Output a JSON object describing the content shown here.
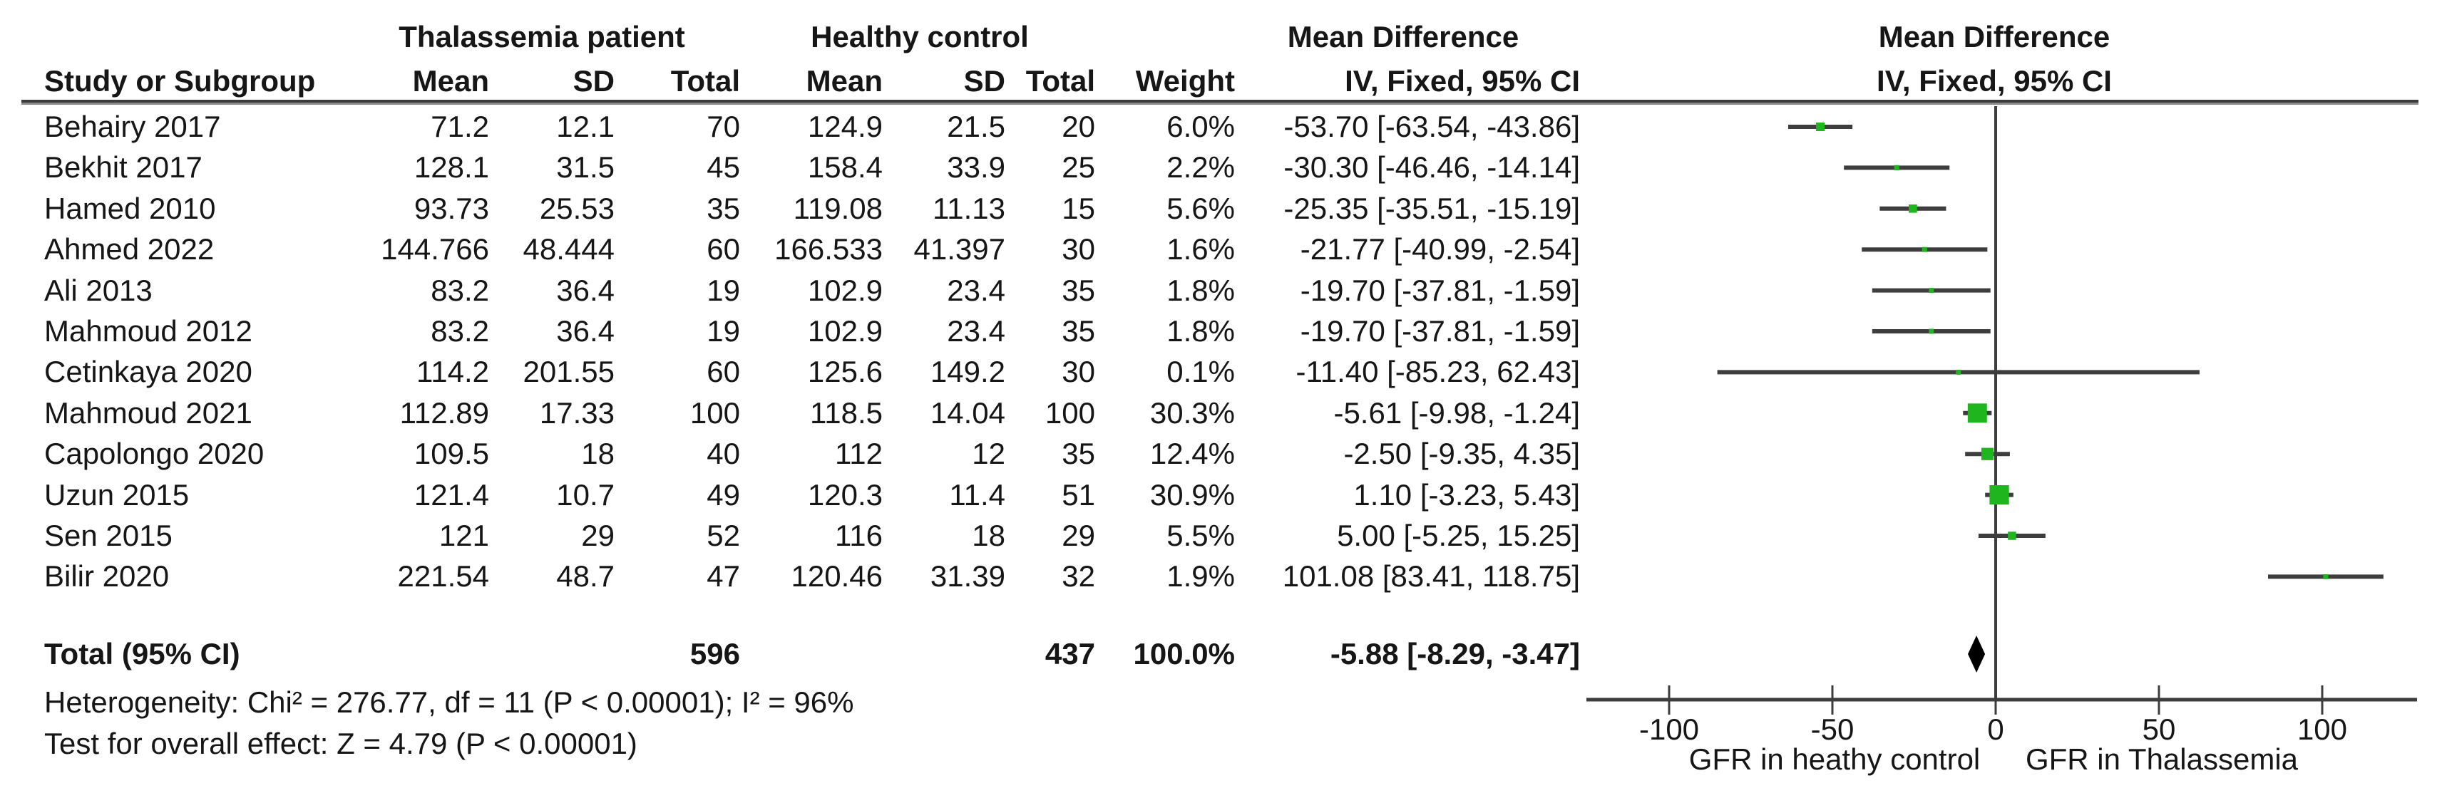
{
  "header": {
    "study_col": "Study or Subgroup",
    "group_left": "Thalassemia patient",
    "group_right": "Healthy control",
    "mean_label": "Mean",
    "sd_label": "SD",
    "total_label": "Total",
    "weight_label": "Weight",
    "md_title": "Mean Difference",
    "md_subtitle": "IV, Fixed, 95% CI",
    "plot_title": "Mean Difference",
    "plot_subtitle": "IV, Fixed, 95% CI"
  },
  "chart_data": {
    "type": "forest",
    "effect_measure": "Mean Difference (IV, Fixed, 95% CI)",
    "studies": [
      {
        "name": "Behairy 2017",
        "mean1": "71.2",
        "sd1": "12.1",
        "total1": "70",
        "mean2": "124.9",
        "sd2": "21.5",
        "total2": "20",
        "weight": "6.0%",
        "weight_pct": 6.0,
        "ci": "-53.70 [-63.54, -43.86]",
        "md": -53.7,
        "lo": -63.54,
        "hi": -43.86
      },
      {
        "name": "Bekhit 2017",
        "mean1": "128.1",
        "sd1": "31.5",
        "total1": "45",
        "mean2": "158.4",
        "sd2": "33.9",
        "total2": "25",
        "weight": "2.2%",
        "weight_pct": 2.2,
        "ci": "-30.30 [-46.46, -14.14]",
        "md": -30.3,
        "lo": -46.46,
        "hi": -14.14
      },
      {
        "name": "Hamed 2010",
        "mean1": "93.73",
        "sd1": "25.53",
        "total1": "35",
        "mean2": "119.08",
        "sd2": "11.13",
        "total2": "15",
        "weight": "5.6%",
        "weight_pct": 5.6,
        "ci": "-25.35 [-35.51, -15.19]",
        "md": -25.35,
        "lo": -35.51,
        "hi": -15.19
      },
      {
        "name": "Ahmed 2022",
        "mean1": "144.766",
        "sd1": "48.444",
        "total1": "60",
        "mean2": "166.533",
        "sd2": "41.397",
        "total2": "30",
        "weight": "1.6%",
        "weight_pct": 1.6,
        "ci": "-21.77 [-40.99, -2.54]",
        "md": -21.77,
        "lo": -40.99,
        "hi": -2.54
      },
      {
        "name": "Ali 2013",
        "mean1": "83.2",
        "sd1": "36.4",
        "total1": "19",
        "mean2": "102.9",
        "sd2": "23.4",
        "total2": "35",
        "weight": "1.8%",
        "weight_pct": 1.8,
        "ci": "-19.70 [-37.81, -1.59]",
        "md": -19.7,
        "lo": -37.81,
        "hi": -1.59
      },
      {
        "name": "Mahmoud 2012",
        "mean1": "83.2",
        "sd1": "36.4",
        "total1": "19",
        "mean2": "102.9",
        "sd2": "23.4",
        "total2": "35",
        "weight": "1.8%",
        "weight_pct": 1.8,
        "ci": "-19.70 [-37.81, -1.59]",
        "md": -19.7,
        "lo": -37.81,
        "hi": -1.59
      },
      {
        "name": "Cetinkaya 2020",
        "mean1": "114.2",
        "sd1": "201.55",
        "total1": "60",
        "mean2": "125.6",
        "sd2": "149.2",
        "total2": "30",
        "weight": "0.1%",
        "weight_pct": 0.1,
        "ci": "-11.40 [-85.23, 62.43]",
        "md": -11.4,
        "lo": -85.23,
        "hi": 62.43
      },
      {
        "name": "Mahmoud 2021",
        "mean1": "112.89",
        "sd1": "17.33",
        "total1": "100",
        "mean2": "118.5",
        "sd2": "14.04",
        "total2": "100",
        "weight": "30.3%",
        "weight_pct": 30.3,
        "ci": "-5.61 [-9.98, -1.24]",
        "md": -5.61,
        "lo": -9.98,
        "hi": -1.24
      },
      {
        "name": "Capolongo 2020",
        "mean1": "109.5",
        "sd1": "18",
        "total1": "40",
        "mean2": "112",
        "sd2": "12",
        "total2": "35",
        "weight": "12.4%",
        "weight_pct": 12.4,
        "ci": "-2.50 [-9.35, 4.35]",
        "md": -2.5,
        "lo": -9.35,
        "hi": 4.35
      },
      {
        "name": "Uzun 2015",
        "mean1": "121.4",
        "sd1": "10.7",
        "total1": "49",
        "mean2": "120.3",
        "sd2": "11.4",
        "total2": "51",
        "weight": "30.9%",
        "weight_pct": 30.9,
        "ci": "1.10 [-3.23, 5.43]",
        "md": 1.1,
        "lo": -3.23,
        "hi": 5.43
      },
      {
        "name": "Sen 2015",
        "mean1": "121",
        "sd1": "29",
        "total1": "52",
        "mean2": "116",
        "sd2": "18",
        "total2": "29",
        "weight": "5.5%",
        "weight_pct": 5.5,
        "ci": "5.00 [-5.25, 15.25]",
        "md": 5.0,
        "lo": -5.25,
        "hi": 15.25
      },
      {
        "name": "Bilir 2020",
        "mean1": "221.54",
        "sd1": "48.7",
        "total1": "47",
        "mean2": "120.46",
        "sd2": "31.39",
        "total2": "32",
        "weight": "1.9%",
        "weight_pct": 1.9,
        "ci": "101.08 [83.41, 118.75]",
        "md": 101.08,
        "lo": 83.41,
        "hi": 118.75
      }
    ],
    "total": {
      "label": "Total (95% CI)",
      "total1": "596",
      "total2": "437",
      "weight": "100.0%",
      "ci": "-5.88 [-8.29, -3.47]",
      "md": -5.88,
      "lo": -8.29,
      "hi": -3.47
    },
    "heterogeneity": "Heterogeneity: Chi² = 276.77, df = 11 (P < 0.00001); I² = 96%",
    "overall_effect": "Test for overall effect: Z = 4.79 (P < 0.00001)",
    "axis": {
      "ticks": [
        "-100",
        "-50",
        "0",
        "50",
        "100"
      ],
      "tick_values": [
        -100,
        -50,
        0,
        50,
        100
      ],
      "xlim": [
        -125,
        129
      ]
    },
    "captions": {
      "left": "GFR in heathy control",
      "right": "GFR in Thalassemia"
    },
    "colors": {
      "square": "#1fb51f",
      "ci_line": "#3d3d3d",
      "axis_line": "#3d3d3d",
      "diamond": "#000000",
      "text": "#161616"
    }
  }
}
